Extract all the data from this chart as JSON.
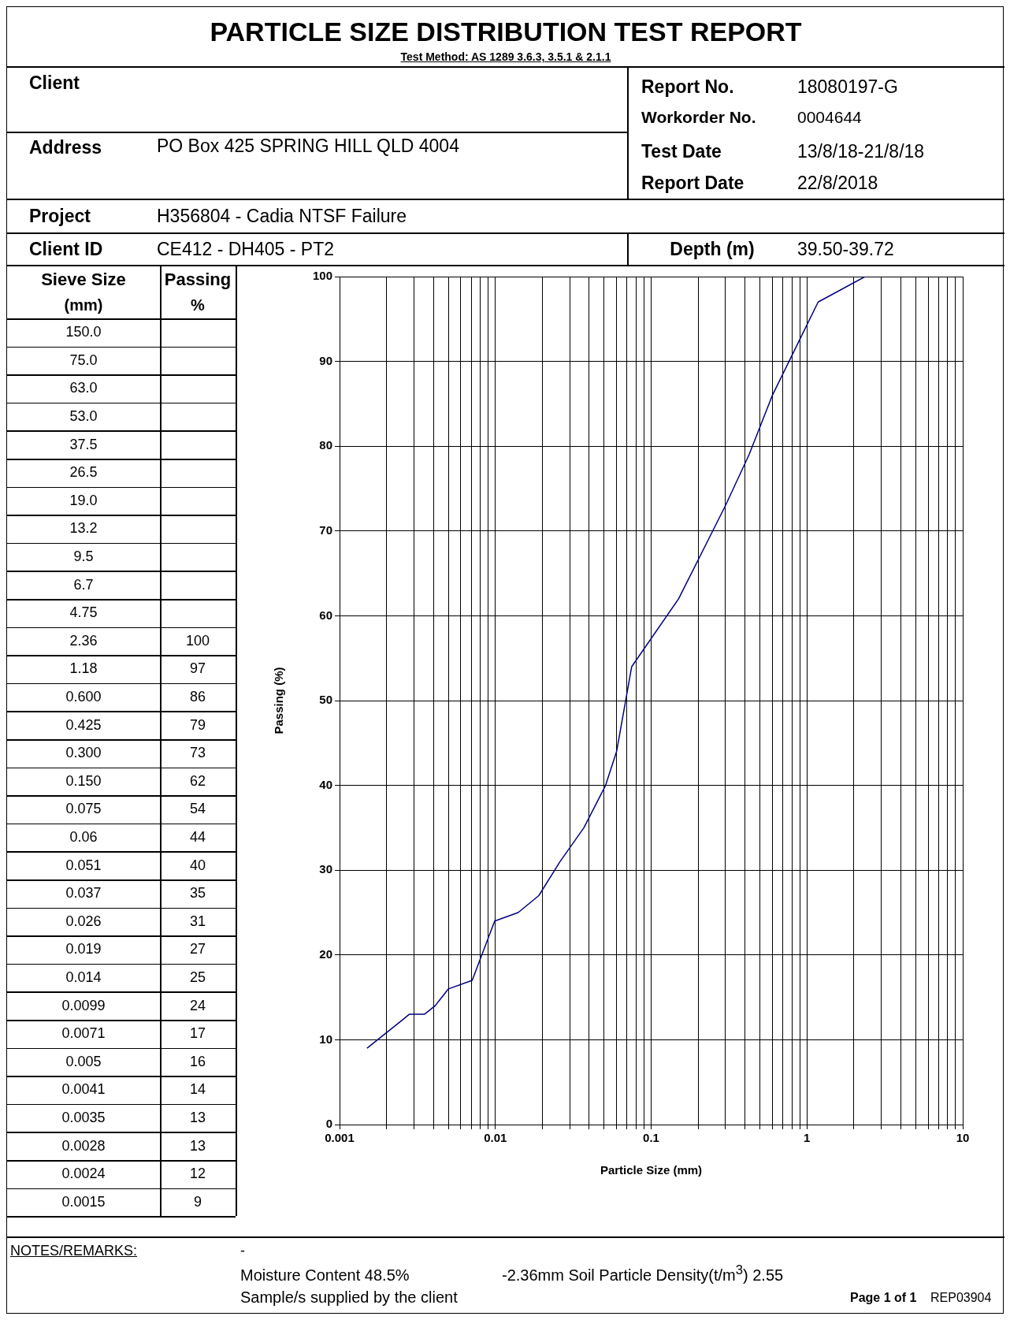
{
  "chart_data": {
    "type": "line",
    "title": "PARTICLE SIZE DISTRIBUTION TEST REPORT",
    "subtitle": "Test Method: AS 1289 3.6.3, 3.5.1 & 2.1.1",
    "xlabel": "Particle Size (mm)",
    "ylabel": "Passing (%)",
    "x": [
      2.36,
      1.18,
      0.6,
      0.425,
      0.3,
      0.15,
      0.075,
      0.06,
      0.051,
      0.037,
      0.026,
      0.019,
      0.014,
      0.0099,
      0.0071,
      0.005,
      0.0041,
      0.0035,
      0.0028,
      0.0024,
      0.0015
    ],
    "series": [
      {
        "color": "#000080",
        "values": [
          100,
          97,
          86,
          79,
          73,
          62,
          54,
          44,
          40,
          35,
          31,
          27,
          25,
          24,
          17,
          16,
          14,
          13,
          13,
          12,
          9
        ]
      }
    ],
    "log": "x",
    "xlim": [
      0.001,
      10
    ],
    "xticks": [
      {
        "value": 0.001,
        "label": "0.001"
      },
      {
        "value": 0.002,
        "label": null
      },
      {
        "value": 0.003,
        "label": null
      },
      {
        "value": 0.004,
        "label": null
      },
      {
        "value": 0.005,
        "label": null
      },
      {
        "value": 0.006,
        "label": null
      },
      {
        "value": 0.007,
        "label": null
      },
      {
        "value": 0.008,
        "label": null
      },
      {
        "value": 0.009,
        "label": null
      },
      {
        "value": 0.01,
        "label": "0.01"
      },
      {
        "value": 0.02,
        "label": null
      },
      {
        "value": 0.03,
        "label": null
      },
      {
        "value": 0.04,
        "label": null
      },
      {
        "value": 0.05,
        "label": null
      },
      {
        "value": 0.06,
        "label": null
      },
      {
        "value": 0.07,
        "label": null
      },
      {
        "value": 0.08,
        "label": null
      },
      {
        "value": 0.09,
        "label": null
      },
      {
        "value": 0.1,
        "label": "0.1"
      },
      {
        "value": 0.2,
        "label": null
      },
      {
        "value": 0.3,
        "label": null
      },
      {
        "value": 0.4,
        "label": null
      },
      {
        "value": 0.5,
        "label": null
      },
      {
        "value": 0.6,
        "label": null
      },
      {
        "value": 0.7,
        "label": null
      },
      {
        "value": 0.8,
        "label": null
      },
      {
        "value": 0.9,
        "label": null
      },
      1,
      {
        "value": 2,
        "label": null
      },
      {
        "value": 3,
        "label": null
      },
      {
        "value": 4,
        "label": null
      },
      {
        "value": 5,
        "label": null
      },
      {
        "value": 6,
        "label": null
      },
      {
        "value": 7,
        "label": null
      },
      {
        "value": 8,
        "label": null
      },
      {
        "value": 9,
        "label": null
      },
      10
    ],
    "ylim": [
      0,
      100
    ],
    "yticks": [
      0,
      10,
      20,
      30,
      40,
      50,
      60,
      70,
      80,
      90,
      100
    ],
    "grid": true,
    "marker": "none",
    "line_style": "solid",
    "annotations": [
      "Client",
      "Report No.",
      "18080197-G",
      "Workorder No.",
      "0004644",
      "Address",
      "PO Box 425 SPRING HILL QLD 4004",
      "Test Date",
      "13/8/18-21/8/18",
      "Report Date",
      "22/8/2018",
      "Project",
      "H356804 - Cadia NTSF Failure",
      "Client ID",
      "CE412 - DH405 - PT2",
      "Depth (m)",
      "39.50-39.72",
      "Sieve Size",
      "(mm)",
      "Passing",
      "%",
      "150.0",
      "75.0",
      "63.0",
      "53.0",
      "37.5",
      "26.5",
      "19.0",
      "13.2",
      "9.5",
      "6.7",
      "4.75",
      "2.36",
      "1.18",
      "0.600",
      "0.425",
      "0.300",
      "0.150",
      "0.075",
      "0.06",
      "0.051",
      "0.037",
      "0.026",
      "0.019",
      "0.014",
      "0.0099",
      "0.0071",
      "0.005",
      "0.0041",
      "0.0035",
      "0.0028",
      "0.0024",
      "0.0015",
      "NOTES/REMARKS:",
      "-",
      "Moisture Content  48.5%",
      "-2.36mm Soil Particle Density(t/m$^{3}$) 2.55",
      "Sample/s supplied by the client",
      "Page 1 of 1",
      "REP03904",
      "100",
      "97",
      "86",
      "79",
      "73",
      "62",
      "54",
      "44",
      "40",
      "35",
      "31",
      "27",
      "25",
      "24",
      "17",
      "16",
      "14",
      "13",
      "13",
      "12",
      "9"
    ]
  }
}
